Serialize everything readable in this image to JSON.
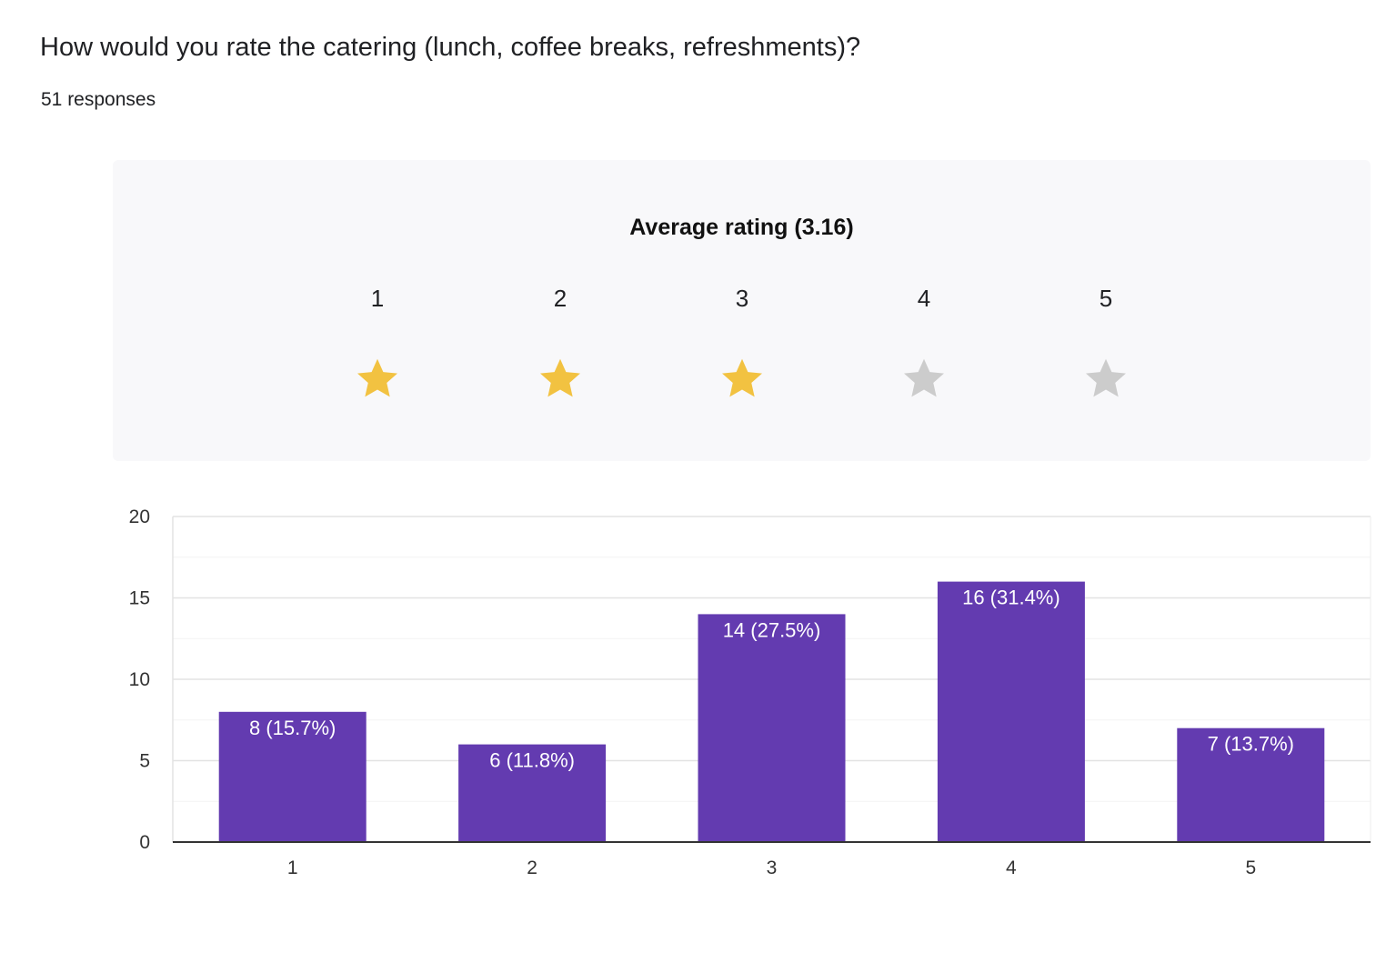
{
  "question": {
    "title": "How would you rate the catering (lunch, coffee breaks, refreshments)?",
    "responses": "51 responses"
  },
  "rating_summary": {
    "title": "Average rating (3.16)",
    "stars": [
      {
        "label": "1",
        "filled": true,
        "icon": "star-icon"
      },
      {
        "label": "2",
        "filled": true,
        "icon": "star-icon"
      },
      {
        "label": "3",
        "filled": true,
        "icon": "star-icon"
      },
      {
        "label": "4",
        "filled": false,
        "icon": "star-icon"
      },
      {
        "label": "5",
        "filled": false,
        "icon": "star-icon"
      }
    ],
    "filled_color": "#f2c241",
    "empty_color": "#cccccc"
  },
  "chart_data": {
    "type": "bar",
    "categories": [
      "1",
      "2",
      "3",
      "4",
      "5"
    ],
    "values": [
      8,
      6,
      14,
      16,
      7
    ],
    "data_labels": [
      "8 (15.7%)",
      "6 (11.8%)",
      "14 (27.5%)",
      "16 (31.4%)",
      "7 (13.7%)"
    ],
    "ylim": [
      0,
      20
    ],
    "yticks": [
      0,
      5,
      10,
      15,
      20
    ],
    "grid": true,
    "minor_gridlines": true,
    "bar_color": "#633bb0",
    "title": "",
    "xlabel": "",
    "ylabel": ""
  }
}
